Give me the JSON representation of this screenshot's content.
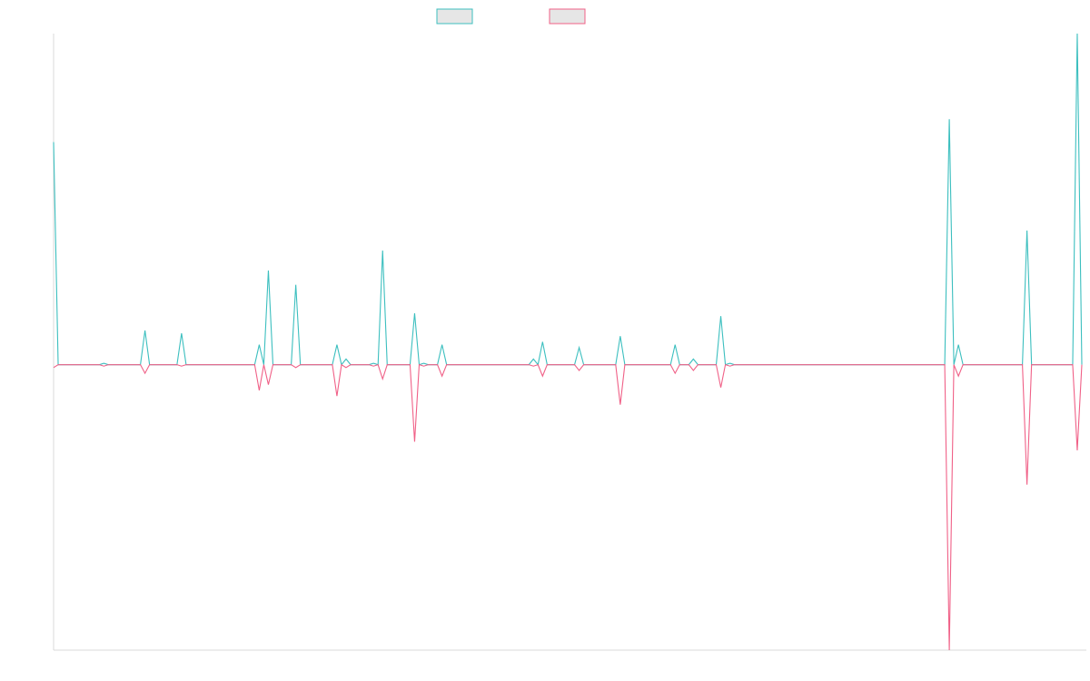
{
  "chart_data": {
    "type": "line",
    "title": "",
    "xlabel": "",
    "ylabel": "",
    "grid": false,
    "legend": "top-center",
    "ylim": [
      -1.0,
      1.16
    ],
    "series": [
      {
        "color": "#3cbfbf",
        "fill": "#e6e6e6",
        "points": [
          [
            0,
            0.78
          ],
          [
            1,
            0
          ],
          [
            10,
            0
          ],
          [
            11,
            0.005
          ],
          [
            12,
            0
          ],
          [
            19,
            0
          ],
          [
            20,
            0.12
          ],
          [
            21,
            0
          ],
          [
            27,
            0
          ],
          [
            28,
            0.11
          ],
          [
            29,
            0
          ],
          [
            44,
            0
          ],
          [
            45,
            0.07
          ],
          [
            46,
            0
          ],
          [
            47,
            0.33
          ],
          [
            48,
            0
          ],
          [
            52,
            0
          ],
          [
            53,
            0.28
          ],
          [
            54,
            0
          ],
          [
            61,
            0
          ],
          [
            62,
            0.07
          ],
          [
            63,
            0
          ],
          [
            64,
            0.02
          ],
          [
            65,
            0
          ],
          [
            69,
            0
          ],
          [
            70,
            0.005
          ],
          [
            71,
            0
          ],
          [
            72,
            0.4
          ],
          [
            73,
            0
          ],
          [
            78,
            0
          ],
          [
            79,
            0.18
          ],
          [
            80,
            0
          ],
          [
            81,
            0.005
          ],
          [
            82,
            0
          ],
          [
            84,
            0
          ],
          [
            85,
            0.07
          ],
          [
            86,
            0
          ],
          [
            104,
            0
          ],
          [
            105,
            0.02
          ],
          [
            106,
            0
          ],
          [
            107,
            0.08
          ],
          [
            108,
            0
          ],
          [
            114,
            0
          ],
          [
            115,
            0.06
          ],
          [
            116,
            0
          ],
          [
            123,
            0
          ],
          [
            124,
            0.1
          ],
          [
            125,
            0
          ],
          [
            135,
            0
          ],
          [
            136,
            0.07
          ],
          [
            137,
            0
          ],
          [
            139,
            0
          ],
          [
            140,
            0.02
          ],
          [
            141,
            0
          ],
          [
            145,
            0
          ],
          [
            146,
            0.17
          ],
          [
            147,
            0
          ],
          [
            148,
            0.005
          ],
          [
            149,
            0
          ],
          [
            195,
            0
          ],
          [
            196,
            0.86
          ],
          [
            197,
            0
          ],
          [
            198,
            0.07
          ],
          [
            199,
            0
          ],
          [
            212,
            0
          ],
          [
            213,
            0.47
          ],
          [
            214,
            0
          ],
          [
            223,
            0
          ],
          [
            224,
            1.16
          ],
          [
            225,
            0
          ]
        ]
      },
      {
        "color": "#f06087",
        "fill": "#e6e6e6",
        "points": [
          [
            0,
            -0.01
          ],
          [
            1,
            0
          ],
          [
            10,
            0
          ],
          [
            11,
            -0.005
          ],
          [
            12,
            0
          ],
          [
            19,
            0
          ],
          [
            20,
            -0.03
          ],
          [
            21,
            0
          ],
          [
            27,
            0
          ],
          [
            28,
            -0.005
          ],
          [
            29,
            0
          ],
          [
            44,
            0
          ],
          [
            45,
            -0.09
          ],
          [
            46,
            0
          ],
          [
            47,
            -0.07
          ],
          [
            48,
            0
          ],
          [
            52,
            0
          ],
          [
            53,
            -0.01
          ],
          [
            54,
            0
          ],
          [
            61,
            0
          ],
          [
            62,
            -0.11
          ],
          [
            63,
            0
          ],
          [
            64,
            -0.01
          ],
          [
            65,
            0
          ],
          [
            69,
            0
          ],
          [
            70,
            -0.005
          ],
          [
            71,
            0
          ],
          [
            72,
            -0.05
          ],
          [
            73,
            0
          ],
          [
            78,
            0
          ],
          [
            79,
            -0.27
          ],
          [
            80,
            0
          ],
          [
            81,
            -0.005
          ],
          [
            82,
            0
          ],
          [
            84,
            0
          ],
          [
            85,
            -0.04
          ],
          [
            86,
            0
          ],
          [
            104,
            0
          ],
          [
            105,
            -0.005
          ],
          [
            106,
            0
          ],
          [
            107,
            -0.04
          ],
          [
            108,
            0
          ],
          [
            114,
            0
          ],
          [
            115,
            -0.02
          ],
          [
            116,
            0
          ],
          [
            123,
            0
          ],
          [
            124,
            -0.14
          ],
          [
            125,
            0
          ],
          [
            135,
            0
          ],
          [
            136,
            -0.03
          ],
          [
            137,
            0
          ],
          [
            139,
            0
          ],
          [
            140,
            -0.02
          ],
          [
            141,
            0
          ],
          [
            145,
            0
          ],
          [
            146,
            -0.08
          ],
          [
            147,
            0
          ],
          [
            148,
            -0.005
          ],
          [
            149,
            0
          ],
          [
            195,
            0
          ],
          [
            196,
            -1.0
          ],
          [
            197,
            0
          ],
          [
            198,
            -0.04
          ],
          [
            199,
            0
          ],
          [
            212,
            0
          ],
          [
            213,
            -0.42
          ],
          [
            214,
            0
          ],
          [
            223,
            0
          ],
          [
            224,
            -0.3
          ],
          [
            225,
            0
          ]
        ]
      }
    ],
    "xlim": [
      0,
      225
    ]
  },
  "colors": {
    "axis": "#d9d9d9",
    "legend_fill": "#e6e6e6"
  }
}
